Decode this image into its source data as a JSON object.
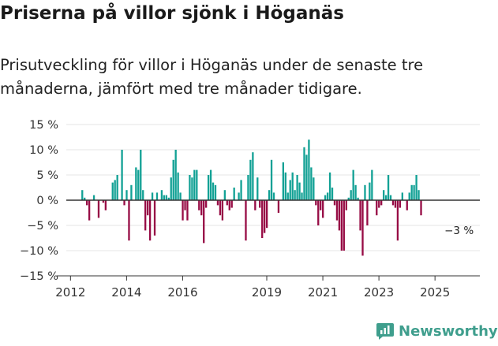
{
  "title": "Priserna på villor sjönk i Höganäs",
  "subtitle": "Prisutveckling för villor i Höganäs under de senaste tre månaderna, jämfört med tre månader tidigare.",
  "brand": {
    "name": "Newsworthy",
    "icon": "newsworthy-logo-icon"
  },
  "colors": {
    "positive": "#12a195",
    "negative": "#970c45",
    "axis": "#333333",
    "grid": "#e6e6e6",
    "brand": "#3f9e8d"
  },
  "chart_data": {
    "type": "bar",
    "title": "Priserna på villor sjönk i Höganäs",
    "xlabel": "",
    "ylabel": "",
    "ylim": [
      -15,
      15
    ],
    "yticks": [
      15,
      10,
      5,
      0,
      -5,
      -10,
      -15
    ],
    "ytick_labels": [
      "15 %",
      "10 %",
      "5 %",
      "0 %",
      "−5 %",
      "−10 %",
      "−15 %"
    ],
    "xticks": [
      2012,
      2014,
      2016,
      2019,
      2021,
      2023,
      2025
    ],
    "xtick_labels": [
      "2012",
      "2014",
      "2016",
      "2019",
      "2021",
      "2023",
      "2025"
    ],
    "xlim": [
      2011.85,
      2026.6
    ],
    "grid": true,
    "annotation": {
      "text": "−3 %",
      "x": 2025.9,
      "y": -3
    },
    "series": [
      {
        "name": "Prisutveckling",
        "start": 2012.42,
        "step": 0.0833333,
        "values": [
          2,
          0.5,
          -1,
          -4,
          0,
          1,
          0,
          -3.5,
          0,
          -0.5,
          -2,
          0,
          0,
          3.5,
          4,
          5,
          0,
          10,
          -1,
          2,
          -8,
          3,
          0,
          6.5,
          6,
          10,
          2,
          -6,
          -3,
          -8,
          1.5,
          -7,
          1.5,
          0,
          2,
          1,
          1,
          0.5,
          4.5,
          8,
          10,
          5.5,
          1.5,
          -4,
          -2,
          -4,
          5,
          4.5,
          6,
          6,
          -2,
          -3,
          -8.5,
          -1.5,
          5,
          6,
          3.5,
          3,
          -1,
          -3,
          -4,
          2,
          -1,
          -2,
          -1.5,
          2.5,
          0,
          1.5,
          4,
          0,
          -8,
          5,
          8,
          9.5,
          -2,
          4.5,
          -1.5,
          -7.5,
          -6.5,
          -5.5,
          2,
          8,
          1.5,
          0,
          -2.5,
          0,
          7.5,
          5.5,
          1.5,
          4,
          5.5,
          2,
          5,
          3.5,
          1.5,
          10.5,
          9,
          12,
          6.5,
          4.5,
          -1,
          -5,
          -2,
          -3.5,
          1,
          1.5,
          5.5,
          2.5,
          -1,
          -4,
          -6,
          -10,
          -10,
          -2,
          0.5,
          2,
          6,
          3,
          0.5,
          -6,
          -11,
          3,
          -5,
          3.5,
          6,
          0,
          -3,
          -1.5,
          -1,
          2,
          1,
          5,
          1,
          -1,
          -1.5,
          -8,
          -1.5,
          1.5,
          0,
          -2,
          1.5,
          3,
          3,
          5,
          2,
          -3
        ]
      }
    ]
  }
}
